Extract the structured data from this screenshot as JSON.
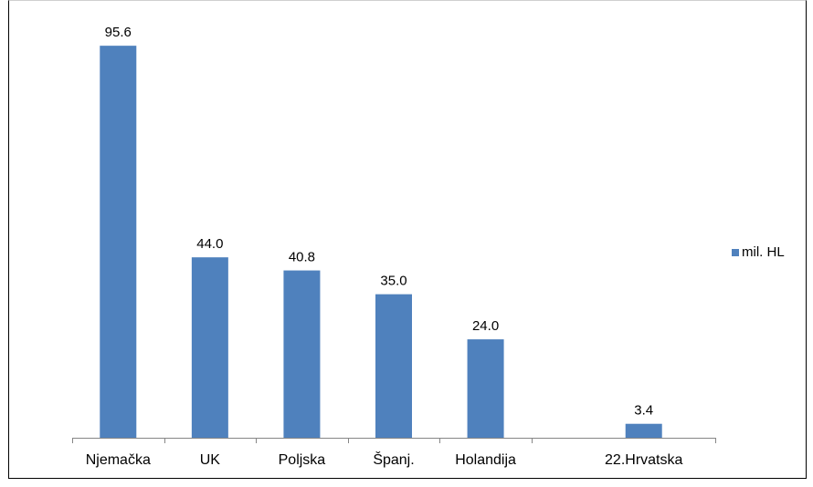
{
  "chart_data": {
    "type": "bar",
    "categories": [
      "Njemačka",
      "UK",
      "Poljska",
      "Španj.",
      "Holandija",
      "",
      "22.Hrvatska"
    ],
    "series": [
      {
        "name": "mil. HL",
        "values": [
          95.6,
          44.0,
          40.8,
          35.0,
          24.0,
          null,
          3.4
        ],
        "color": "#4f81bd"
      }
    ],
    "data_labels": [
      "95.6",
      "44.0",
      "40.8",
      "35.0",
      "24.0",
      "",
      "3.4"
    ],
    "title": "",
    "xlabel": "",
    "ylabel": "",
    "ylim": [
      0,
      100
    ],
    "grid": false,
    "legend": "right"
  }
}
